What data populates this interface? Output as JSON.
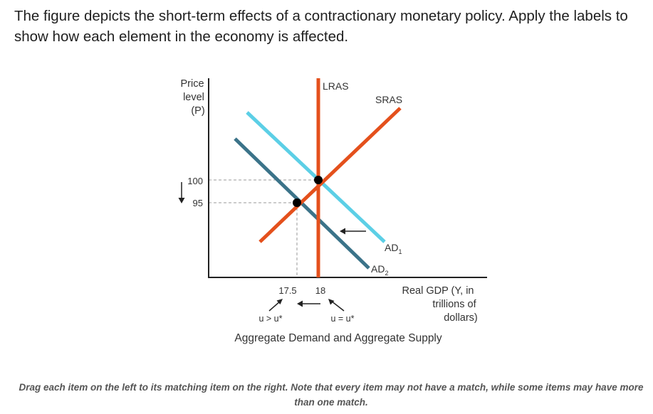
{
  "question": {
    "text": "The figure depicts the short-term effects of a contractionary monetary policy. Apply the labels to show how each element in the economy is affected."
  },
  "figure": {
    "caption": "Aggregate Demand and Aggregate Supply",
    "y_axis_label": [
      "Price",
      "level",
      "(P)"
    ],
    "x_axis_label": [
      "Real GDP (Y, in",
      "trillions of",
      "dollars)"
    ],
    "price_ticks": [
      "100",
      "95"
    ],
    "output_ticks": [
      "17.5",
      "18"
    ],
    "curves": {
      "lras": "LRAS",
      "sras": "SRAS",
      "ad1": {
        "base": "AD",
        "sub": "1"
      },
      "ad2": {
        "base": "AD",
        "sub": "2"
      }
    },
    "unemployment": {
      "left": "u > u*",
      "right": "u = u*"
    },
    "colors": {
      "lras": "#e4501c",
      "sras": "#e4501c",
      "ad1": "#5ccfe6",
      "ad2": "#3b7389",
      "axis": "#222222",
      "guide": "#999999"
    },
    "equilibria": [
      {
        "price": "100",
        "output": "18"
      },
      {
        "price": "95",
        "output": "17.5"
      }
    ]
  },
  "instructions": {
    "text": "Drag each item on the left to its matching item on the right. Note that every item may not have a match, while some items may have more than one match."
  }
}
